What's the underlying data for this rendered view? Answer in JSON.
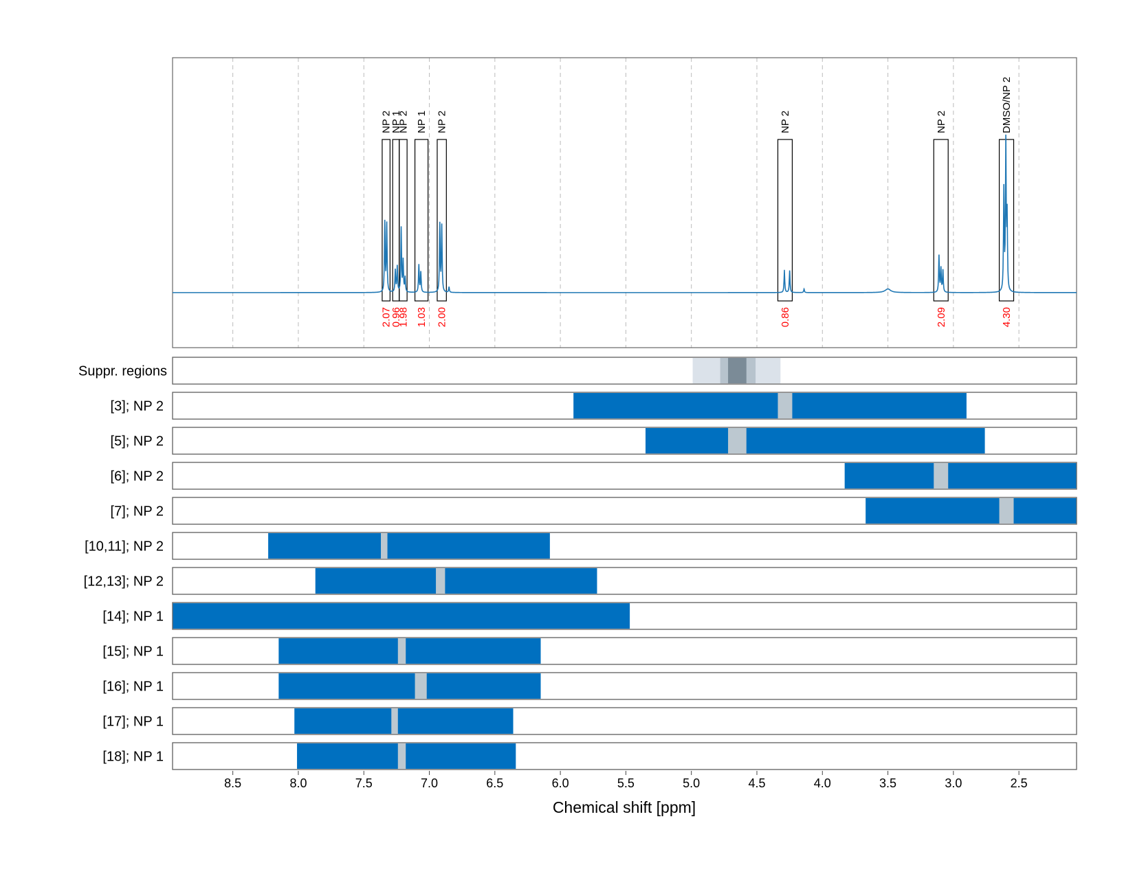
{
  "chart_data": {
    "type": "line",
    "xlabel": "Chemical shift [ppm]",
    "xlim": [
      8.96,
      2.06
    ],
    "x_reversed": true,
    "x_ticks": [
      "8.5",
      "8.0",
      "7.5",
      "7.0",
      "6.5",
      "6.0",
      "5.5",
      "5.0",
      "4.5",
      "4.0",
      "3.5",
      "3.0",
      "2.5"
    ],
    "x_tick_values": [
      8.5,
      8.0,
      7.5,
      7.0,
      6.5,
      6.0,
      5.5,
      5.0,
      4.5,
      4.0,
      3.5,
      3.0,
      2.5
    ],
    "grid": "vertical dashed",
    "colors": {
      "spectrum": "#1f77b4",
      "bar": "#0070c0",
      "gap": "#bcc8d0",
      "integral": "#ff0000",
      "box": "#000000"
    },
    "spectrum": {
      "name": "",
      "baseline": 0,
      "peaks": [
        {
          "ppm": 7.34,
          "height": 0.38
        },
        {
          "ppm": 7.325,
          "height": 0.37
        },
        {
          "ppm": 7.26,
          "height": 0.12
        },
        {
          "ppm": 7.245,
          "height": 0.14
        },
        {
          "ppm": 7.215,
          "height": 0.35
        },
        {
          "ppm": 7.2,
          "height": 0.17
        },
        {
          "ppm": 7.185,
          "height": 0.08
        },
        {
          "ppm": 7.08,
          "height": 0.15
        },
        {
          "ppm": 7.065,
          "height": 0.11
        },
        {
          "ppm": 6.92,
          "height": 0.37
        },
        {
          "ppm": 6.905,
          "height": 0.36
        },
        {
          "ppm": 6.85,
          "height": 0.03
        },
        {
          "ppm": 4.29,
          "height": 0.12
        },
        {
          "ppm": 4.25,
          "height": 0.12
        },
        {
          "ppm": 4.14,
          "height": 0.02
        },
        {
          "ppm": 3.5,
          "height": 0.02,
          "broad": true
        },
        {
          "ppm": 3.11,
          "height": 0.2
        },
        {
          "ppm": 3.095,
          "height": 0.13
        },
        {
          "ppm": 3.08,
          "height": 0.12
        },
        {
          "ppm": 2.615,
          "height": 0.55
        },
        {
          "ppm": 2.6,
          "height": 0.8
        },
        {
          "ppm": 2.59,
          "height": 0.4
        }
      ],
      "ylim": [
        -0.3,
        1.28
      ]
    },
    "annotations": [
      {
        "label": "NP 2",
        "integral": "2.07",
        "from": 7.36,
        "to": 7.3
      },
      {
        "label": "NP 1",
        "integral": "0.96",
        "from": 7.28,
        "to": 7.23
      },
      {
        "label": "NP 2",
        "integral": "1.98",
        "from": 7.23,
        "to": 7.17
      },
      {
        "label": "NP 1",
        "integral": "1.03",
        "from": 7.11,
        "to": 7.01
      },
      {
        "label": "NP 2",
        "integral": "2.00",
        "from": 6.94,
        "to": 6.87
      },
      {
        "label": "NP 2",
        "integral": "0.86",
        "from": 4.34,
        "to": 4.23
      },
      {
        "label": "NP 2",
        "integral": "2.09",
        "from": 3.15,
        "to": 3.04
      },
      {
        "label": "DMSO/NP 2",
        "integral": "4.30",
        "from": 2.65,
        "to": 2.54
      }
    ],
    "suppressed_regions": {
      "label": "Suppr. regions",
      "regions": [
        {
          "from": 4.99,
          "to": 4.32,
          "shade": 1
        },
        {
          "from": 4.78,
          "to": 4.51,
          "shade": 2
        },
        {
          "from": 4.72,
          "to": 4.58,
          "shade": 3
        }
      ]
    },
    "rows": [
      {
        "label": "[3]; NP 2",
        "start": 5.9,
        "end": 2.9,
        "gap": [
          4.34,
          4.23
        ]
      },
      {
        "label": "[5]; NP 2",
        "start": 5.35,
        "end": 2.76,
        "gap": [
          4.72,
          4.58
        ]
      },
      {
        "label": "[6]; NP 2",
        "start": 3.83,
        "end": 2.06,
        "gap": [
          3.15,
          3.04
        ]
      },
      {
        "label": "[7]; NP 2",
        "start": 3.67,
        "end": 2.06,
        "gap": [
          2.65,
          2.54
        ]
      },
      {
        "label": "[10,11]; NP 2",
        "start": 8.23,
        "end": 6.08,
        "gap": [
          7.37,
          7.32
        ]
      },
      {
        "label": "[12,13]; NP 2",
        "start": 7.87,
        "end": 5.72,
        "gap": [
          6.95,
          6.88
        ]
      },
      {
        "label": "[14]; NP 1",
        "start": 8.96,
        "end": 5.47,
        "gap": null
      },
      {
        "label": "[15]; NP 1",
        "start": 8.15,
        "end": 6.15,
        "gap": [
          7.24,
          7.18
        ]
      },
      {
        "label": "[16]; NP 1",
        "start": 8.15,
        "end": 6.15,
        "gap": [
          7.11,
          7.02
        ]
      },
      {
        "label": "[17]; NP 1",
        "start": 8.03,
        "end": 6.36,
        "gap": [
          7.29,
          7.24
        ]
      },
      {
        "label": "[18]; NP 1",
        "start": 8.01,
        "end": 6.34,
        "gap": [
          7.24,
          7.18
        ]
      }
    ]
  }
}
